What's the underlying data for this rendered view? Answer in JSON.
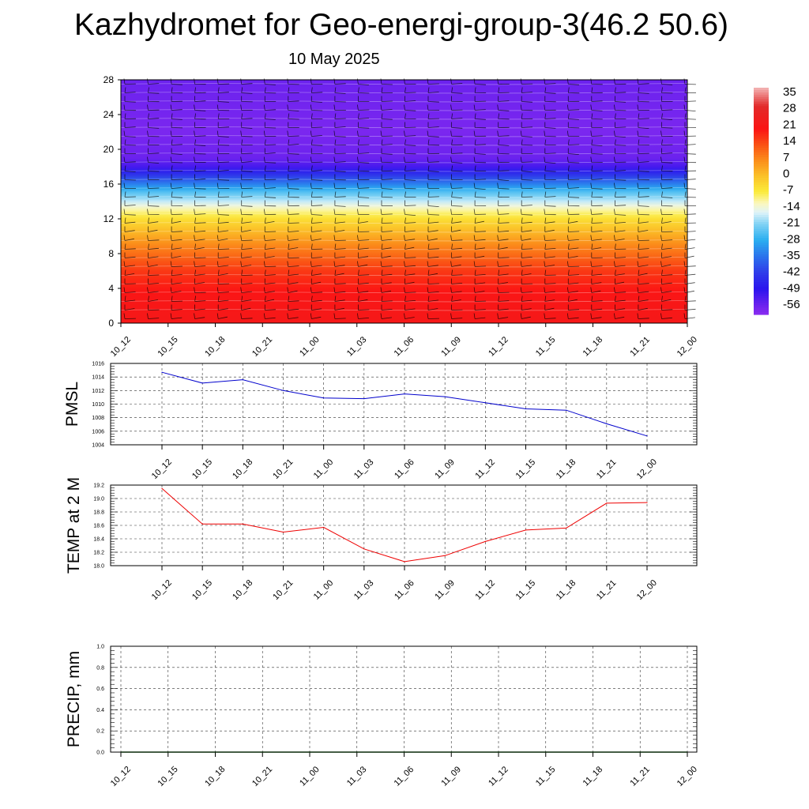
{
  "title": "Kazhydromet for Geo-energi-group-3(46.2 50.6)",
  "subtitle": "10 May 2025",
  "chart_data": [
    {
      "type": "heatmap",
      "name": "temperature-wind-profile",
      "x_categories": [
        "10_12",
        "10_15",
        "10_18",
        "10_21",
        "11_00",
        "11_03",
        "11_06",
        "11_09",
        "11_12",
        "11_15",
        "11_18",
        "11_21",
        "12_00"
      ],
      "y_ticks": [
        0,
        4,
        8,
        12,
        16,
        20,
        24,
        28
      ],
      "ylim": [
        0,
        28
      ],
      "colorbar_labels": [
        "35",
        "28",
        "21",
        "14",
        "7",
        "0",
        "-7",
        "-14",
        "-21",
        "-28",
        "-35",
        "-42",
        "-49",
        "-56"
      ],
      "colorbar_range": [
        -60,
        38
      ],
      "colorbar_stops": [
        {
          "v": 38,
          "c": "#f3b6b6"
        },
        {
          "v": 30,
          "c": "#e22a2a"
        },
        {
          "v": 20,
          "c": "#fb1414"
        },
        {
          "v": 14,
          "c": "#fa4a14"
        },
        {
          "v": 7,
          "c": "#fb8a1a"
        },
        {
          "v": 0,
          "c": "#fbc028"
        },
        {
          "v": -7,
          "c": "#fbeb3a"
        },
        {
          "v": -12,
          "c": "#fbf7bd"
        },
        {
          "v": -16,
          "c": "#dff3fa"
        },
        {
          "v": -21,
          "c": "#7fd2f4"
        },
        {
          "v": -28,
          "c": "#2aaef0"
        },
        {
          "v": -35,
          "c": "#2b72ec"
        },
        {
          "v": -42,
          "c": "#2f3cea"
        },
        {
          "v": -49,
          "c": "#2b14ee"
        },
        {
          "v": -56,
          "c": "#6b22ee"
        },
        {
          "v": -60,
          "c": "#8a2cf0"
        }
      ],
      "vertical_profile": [
        {
          "y": 0,
          "v": 22
        },
        {
          "y": 3,
          "v": 21
        },
        {
          "y": 6,
          "v": 16
        },
        {
          "y": 9,
          "v": 7
        },
        {
          "y": 12,
          "v": -5
        },
        {
          "y": 13.5,
          "v": -14
        },
        {
          "y": 15,
          "v": -24
        },
        {
          "y": 16.5,
          "v": -38
        },
        {
          "y": 18,
          "v": -52
        },
        {
          "y": 19,
          "v": -56
        },
        {
          "y": 22,
          "v": -58
        },
        {
          "y": 25,
          "v": -57
        },
        {
          "y": 28,
          "v": -56
        }
      ]
    },
    {
      "type": "line",
      "name": "pmsl",
      "ylabel": "PMSL",
      "categories": [
        "10_12",
        "10_15",
        "10_18",
        "10_21",
        "11_00",
        "11_03",
        "11_06",
        "11_09",
        "11_12",
        "11_15",
        "11_18",
        "11_21",
        "12_00"
      ],
      "y_ticks": [
        "1004",
        "1006",
        "1008",
        "1010",
        "1012",
        "1014",
        "1016"
      ],
      "ylim": [
        1004,
        1016
      ],
      "color": "#0000cc",
      "values": [
        1014.7,
        1013.1,
        1013.6,
        1012.0,
        1010.9,
        1010.8,
        1011.5,
        1011.1,
        1010.2,
        1009.3,
        1009.1,
        1007.1,
        1005.3
      ]
    },
    {
      "type": "line",
      "name": "temp",
      "ylabel": "TEMP at 2 M",
      "categories": [
        "10_12",
        "10_15",
        "10_18",
        "10_21",
        "11_00",
        "11_03",
        "11_06",
        "11_09",
        "11_12",
        "11_15",
        "11_18",
        "11_21",
        "12_00"
      ],
      "y_ticks": [
        "18.0",
        "18.2",
        "18.4",
        "18.6",
        "18.8",
        "19.0",
        "19.2"
      ],
      "ylim": [
        18.0,
        19.2
      ],
      "color": "#ee0000",
      "values": [
        19.15,
        18.62,
        18.62,
        18.5,
        18.57,
        18.25,
        18.06,
        18.15,
        18.36,
        18.53,
        18.56,
        18.93,
        18.94
      ]
    },
    {
      "type": "line",
      "name": "precip",
      "ylabel": "PRECIP, mm",
      "categories": [
        "10_12",
        "10_15",
        "10_18",
        "10_21",
        "11_00",
        "11_03",
        "11_06",
        "11_09",
        "11_12",
        "11_15",
        "11_18",
        "11_21",
        "12_00"
      ],
      "y_ticks": [
        "0.0",
        "0.2",
        "0.4",
        "0.6",
        "0.8",
        "1.0"
      ],
      "ylim": [
        0,
        1
      ],
      "color": "#1a7a1a",
      "values": [
        0,
        0,
        0,
        0,
        0,
        0,
        0,
        0,
        0,
        0,
        0,
        0,
        0
      ]
    }
  ]
}
